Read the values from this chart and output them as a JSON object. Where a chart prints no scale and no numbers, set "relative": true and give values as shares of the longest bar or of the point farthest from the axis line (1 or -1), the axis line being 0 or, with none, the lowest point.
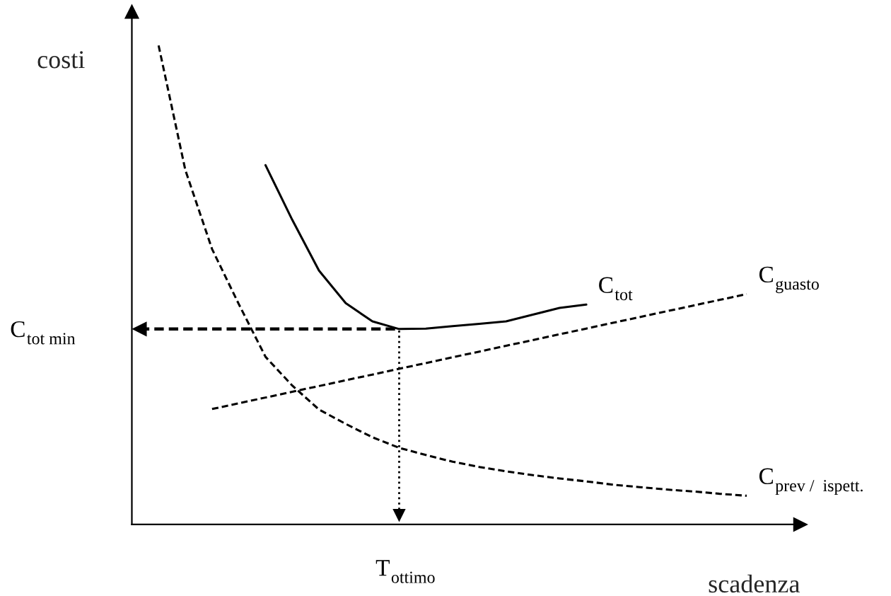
{
  "chart_data": {
    "type": "line",
    "relative": true,
    "xlabel": "scadenza",
    "ylabel": "costi",
    "legend": false,
    "marker": "none",
    "categories": [
      null,
      null,
      null,
      null,
      null,
      null,
      null,
      null,
      null,
      null,
      null,
      null,
      null,
      null,
      null,
      null,
      null,
      null,
      null,
      null,
      null,
      null,
      null
    ],
    "series": [
      {
        "name": "C$_{tot}$",
        "color": "#000000",
        "line_style": "solid",
        "values": [
          null,
          null,
          null,
          null,
          0.75,
          0.636,
          0.53,
          0.462,
          0.424,
          0.408,
          0.409,
          0.414,
          0.419,
          0.424,
          0.438,
          0.452,
          0.459,
          null,
          null,
          null,
          null,
          null,
          null
        ]
      },
      {
        "name": "C$_{guasto}$",
        "color": "#000000",
        "line_style": "dashed",
        "values": [
          null,
          null,
          0.241,
          0.253,
          0.265,
          0.277,
          0.289,
          0.301,
          0.313,
          0.325,
          0.337,
          0.349,
          0.361,
          0.373,
          0.385,
          0.397,
          0.409,
          0.421,
          0.433,
          0.445,
          0.457,
          0.469,
          0.481
        ]
      },
      {
        "name": "C$_{prev /  ispett.}$",
        "color": "#000000",
        "line_style": "dashed",
        "values": [
          1.0,
          0.74,
          0.575,
          0.46,
          0.35,
          0.29,
          0.24,
          0.21,
          0.182,
          0.16,
          0.145,
          0.131,
          0.12,
          0.111,
          0.103,
          0.096,
          0.09,
          0.083,
          0.078,
          0.073,
          0.069,
          0.064,
          0.06
        ]
      }
    ],
    "ref_lines": [
      {
        "axis": "y",
        "value": 0.408,
        "label": "C$_{tot min}$",
        "line_style": "dashed"
      }
    ],
    "annotations": [
      "T$_{ottimo}$"
    ]
  }
}
